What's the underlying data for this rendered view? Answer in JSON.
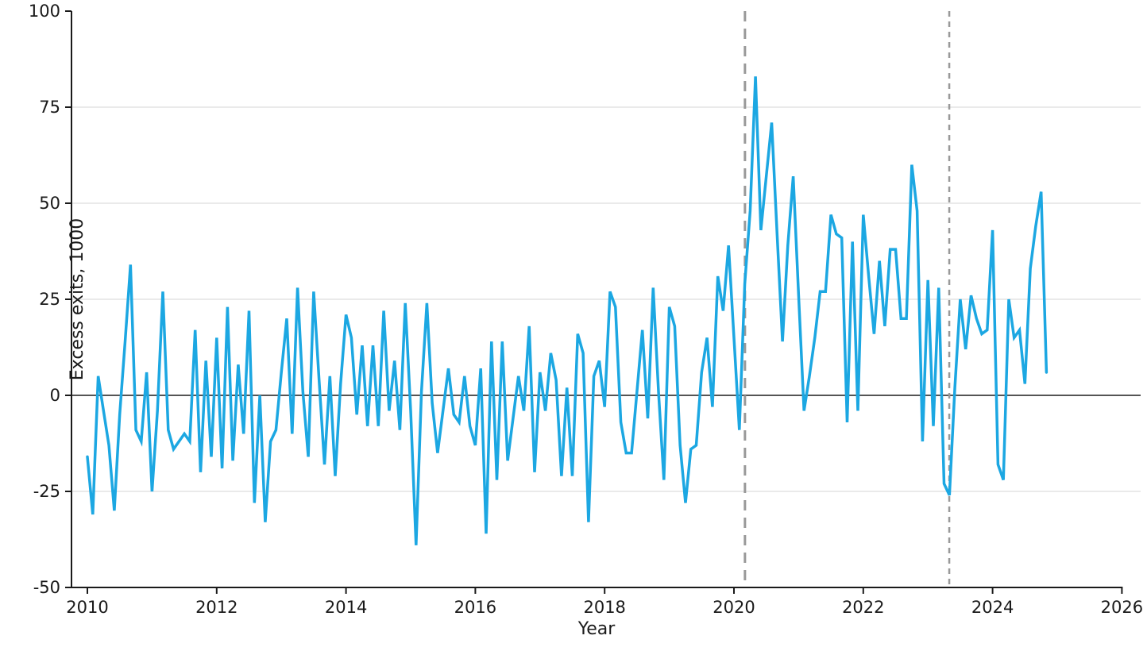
{
  "chart_data": {
    "type": "line",
    "title": "",
    "xlabel": "Year",
    "ylabel": "Excess exits, 1000",
    "x_ticks": [
      2010,
      2012,
      2014,
      2016,
      2018,
      2020,
      2022,
      2024,
      2026
    ],
    "y_ticks": [
      100,
      75,
      50,
      25,
      0,
      -25,
      -50
    ],
    "ylim": [
      -50,
      100
    ],
    "xlim": [
      2009.75,
      2026.3
    ],
    "gridlines_y": [
      75,
      50,
      25,
      -25
    ],
    "zero_line_y": 0,
    "grid": "horizontal-light",
    "legend": "none",
    "line_color": "#1CA7E2",
    "vline_color": "#999999",
    "axis_color": "#1a1a1a",
    "vlines": [
      {
        "year": 2020.17,
        "dash": "long"
      },
      {
        "year": 2023.33,
        "dash": "short"
      }
    ],
    "series": [
      {
        "name": "Excess exits",
        "start": "2010-01",
        "frequency": "monthly",
        "values": [
          -16,
          -31,
          5,
          -4,
          -13,
          -30,
          -5,
          14,
          34,
          -9,
          -12,
          6,
          -25,
          -4,
          27,
          -9,
          -14,
          -12,
          -10,
          -12,
          17,
          -20,
          9,
          -16,
          15,
          -19,
          23,
          -17,
          8,
          -10,
          22,
          -28,
          0,
          -33,
          -12,
          -9,
          6,
          20,
          -10,
          28,
          1,
          -16,
          27,
          4,
          -18,
          5,
          -21,
          3,
          21,
          15,
          -5,
          13,
          -8,
          13,
          -8,
          22,
          -4,
          9,
          -9,
          24,
          -4,
          -39,
          1,
          24,
          -2,
          -15,
          -4,
          7,
          -5,
          -7,
          5,
          -8,
          -13,
          7,
          -36,
          14,
          -22,
          14,
          -17,
          -6,
          5,
          -4,
          18,
          -20,
          6,
          -4,
          11,
          4,
          -21,
          2,
          -21,
          16,
          11,
          -33,
          5,
          9,
          -3,
          27,
          23,
          -7,
          -15,
          -15,
          1,
          17,
          -6,
          28,
          1,
          -22,
          23,
          18,
          -13,
          -28,
          -14,
          -13,
          6,
          15,
          -3,
          31,
          22,
          39,
          15,
          -9,
          29,
          48,
          83,
          43,
          57,
          71,
          42,
          14,
          39,
          57,
          26,
          -4,
          5,
          15,
          27,
          27,
          47,
          42,
          41,
          -7,
          40,
          -4,
          47,
          31,
          16,
          35,
          18,
          38,
          38,
          20,
          20,
          60,
          48,
          -12,
          30,
          -8,
          28,
          -23,
          -26,
          2,
          25,
          12,
          26,
          20,
          16,
          17,
          43,
          -18,
          -22,
          25,
          15,
          17,
          3,
          33,
          44,
          53,
          6
        ]
      }
    ]
  }
}
